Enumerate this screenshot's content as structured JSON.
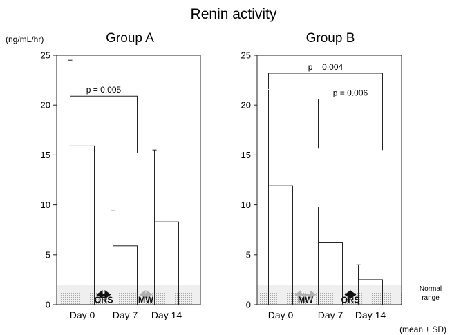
{
  "figure": {
    "title": "Renin activity",
    "y_unit": "(ng/mL/hr)",
    "footer": "(mean ± SD)",
    "normal_label_line1": "Normal",
    "normal_label_line2": "range"
  },
  "chart_data": [
    {
      "type": "bar",
      "title": "Group A",
      "ylabel": "(ng/mL/hr)",
      "xlabel": "",
      "categories": [
        "Day 0",
        "Day 7",
        "Day 14"
      ],
      "values": [
        15.9,
        5.9,
        8.3
      ],
      "error_sd": [
        8.6,
        3.5,
        7.2
      ],
      "ylim": [
        0,
        25
      ],
      "yticks": [
        0,
        5,
        10,
        15,
        20,
        25
      ],
      "normal_range": [
        0,
        2
      ],
      "comparisons": [
        {
          "from": 0,
          "to": 1,
          "label": "p = 0.005",
          "level": 20.9,
          "from_drop": 18.3,
          "to_drop": 15.2
        }
      ],
      "interventions": [
        {
          "between": [
            0,
            1
          ],
          "label": "ORS",
          "color": "#111111"
        },
        {
          "between": [
            1,
            2
          ],
          "label": "MW",
          "color": "#b0b0b0"
        }
      ]
    },
    {
      "type": "bar",
      "title": "Group B",
      "ylabel": "",
      "xlabel": "",
      "categories": [
        "Day 0",
        "Day 7",
        "Day 14"
      ],
      "values": [
        11.9,
        6.2,
        2.5
      ],
      "error_sd": [
        9.6,
        3.6,
        1.5
      ],
      "ylim": [
        0,
        25
      ],
      "yticks": [
        0,
        5,
        10,
        15,
        20,
        25
      ],
      "normal_range": [
        0,
        2
      ],
      "comparisons": [
        {
          "from": 0,
          "to": 2,
          "label": "p = 0.004",
          "level": 23.2,
          "from_drop": 21.6,
          "to_drop": 15.5
        },
        {
          "from": 1,
          "to": 2,
          "label": "p = 0.006",
          "level": 20.6,
          "from_drop": 15.7,
          "to_drop": 15.5
        }
      ],
      "interventions": [
        {
          "between": [
            0,
            1
          ],
          "label": "MW",
          "color": "#b0b0b0"
        },
        {
          "between": [
            1,
            2
          ],
          "label": "ORS",
          "color": "#111111"
        }
      ]
    }
  ]
}
